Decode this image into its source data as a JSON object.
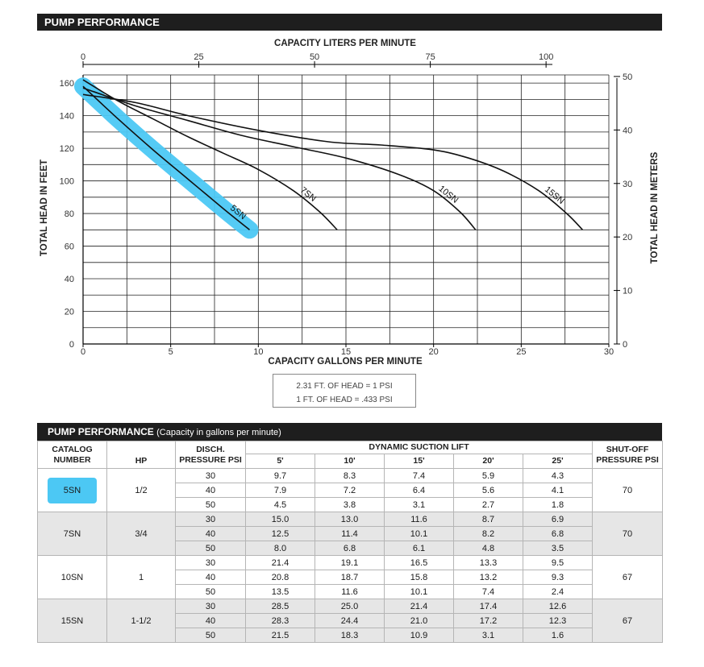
{
  "header": {
    "title": "PUMP PERFORMANCE"
  },
  "chart_data": {
    "type": "line",
    "title": "PUMP PERFORMANCE",
    "xlabel": "CAPACITY GALLONS PER MINUTE",
    "x2label": "CAPACITY LITERS PER MINUTE",
    "ylabel": "TOTAL HEAD IN FEET",
    "y2label": "TOTAL HEAD IN METERS",
    "xlim": [
      0,
      30
    ],
    "ylim": [
      0,
      165
    ],
    "x_ticks": [
      0,
      5,
      10,
      15,
      20,
      25,
      30
    ],
    "y_ticks": [
      0,
      20,
      40,
      60,
      80,
      100,
      120,
      140,
      160
    ],
    "x2_ticks": [
      0,
      25,
      50,
      75,
      100
    ],
    "y2_ticks": [
      0,
      10,
      20,
      30,
      40,
      50
    ],
    "grid": true,
    "series": [
      {
        "name": "5SN",
        "x": [
          0,
          2,
          4,
          6,
          8,
          9.5
        ],
        "y": [
          158,
          138,
          119,
          101,
          83,
          70
        ]
      },
      {
        "name": "7SN",
        "x": [
          0,
          2,
          4,
          6,
          8,
          10,
          12,
          13.5,
          14.5
        ],
        "y": [
          162,
          149,
          138,
          127,
          117,
          107,
          94,
          81,
          70
        ]
      },
      {
        "name": "10SN",
        "x": [
          0,
          3,
          6,
          9,
          12,
          15,
          18,
          20,
          21.5,
          22.4
        ],
        "y": [
          157,
          146,
          137,
          128,
          121,
          114,
          104,
          94,
          81,
          70
        ]
      },
      {
        "name": "15SN",
        "x": [
          0,
          3,
          6,
          10,
          14,
          17,
          20,
          22,
          24,
          26,
          27.6,
          28.5
        ],
        "y": [
          153,
          148,
          140,
          131,
          124,
          122,
          119,
          114,
          106,
          94,
          80,
          70
        ]
      }
    ],
    "highlight": {
      "series": "5SN",
      "color": "#4cc8f4"
    }
  },
  "conversion": {
    "line1": "2.31 FT. OF HEAD = 1 PSI",
    "line2": "1 FT. OF HEAD = .433 PSI"
  },
  "table": {
    "title": "PUMP PERFORMANCE",
    "subtitle": "(Capacity in gallons per minute)",
    "headers": {
      "catalog": "CATALOG NUMBER",
      "hp": "HP",
      "disch": "DISCH. PRESSURE PSI",
      "lift": "DYNAMIC SUCTION LIFT",
      "shutoff": "SHUT-OFF PRESSURE PSI",
      "lift_cols": [
        "5'",
        "10'",
        "15'",
        "20'",
        "25'"
      ]
    },
    "rows": [
      {
        "catalog": "5SN",
        "hp": "1/2",
        "shutoff": "70",
        "highlight": true,
        "pressures": [
          {
            "psi": "30",
            "values": [
              "9.7",
              "8.3",
              "7.4",
              "5.9",
              "4.3"
            ]
          },
          {
            "psi": "40",
            "values": [
              "7.9",
              "7.2",
              "6.4",
              "5.6",
              "4.1"
            ]
          },
          {
            "psi": "50",
            "values": [
              "4.5",
              "3.8",
              "3.1",
              "2.7",
              "1.8"
            ]
          }
        ]
      },
      {
        "catalog": "7SN",
        "hp": "3/4",
        "shutoff": "70",
        "highlight": false,
        "pressures": [
          {
            "psi": "30",
            "values": [
              "15.0",
              "13.0",
              "11.6",
              "8.7",
              "6.9"
            ]
          },
          {
            "psi": "40",
            "values": [
              "12.5",
              "11.4",
              "10.1",
              "8.2",
              "6.8"
            ]
          },
          {
            "psi": "50",
            "values": [
              "8.0",
              "6.8",
              "6.1",
              "4.8",
              "3.5"
            ]
          }
        ]
      },
      {
        "catalog": "10SN",
        "hp": "1",
        "shutoff": "67",
        "highlight": false,
        "pressures": [
          {
            "psi": "30",
            "values": [
              "21.4",
              "19.1",
              "16.5",
              "13.3",
              "9.5"
            ]
          },
          {
            "psi": "40",
            "values": [
              "20.8",
              "18.7",
              "15.8",
              "13.2",
              "9.3"
            ]
          },
          {
            "psi": "50",
            "values": [
              "13.5",
              "11.6",
              "10.1",
              "7.4",
              "2.4"
            ]
          }
        ]
      },
      {
        "catalog": "15SN",
        "hp": "1-1/2",
        "shutoff": "67",
        "highlight": false,
        "pressures": [
          {
            "psi": "30",
            "values": [
              "28.5",
              "25.0",
              "21.4",
              "17.4",
              "12.6"
            ]
          },
          {
            "psi": "40",
            "values": [
              "28.3",
              "24.4",
              "21.0",
              "17.2",
              "12.3"
            ]
          },
          {
            "psi": "50",
            "values": [
              "21.5",
              "18.3",
              "10.9",
              "3.1",
              "1.6"
            ]
          }
        ]
      }
    ]
  }
}
